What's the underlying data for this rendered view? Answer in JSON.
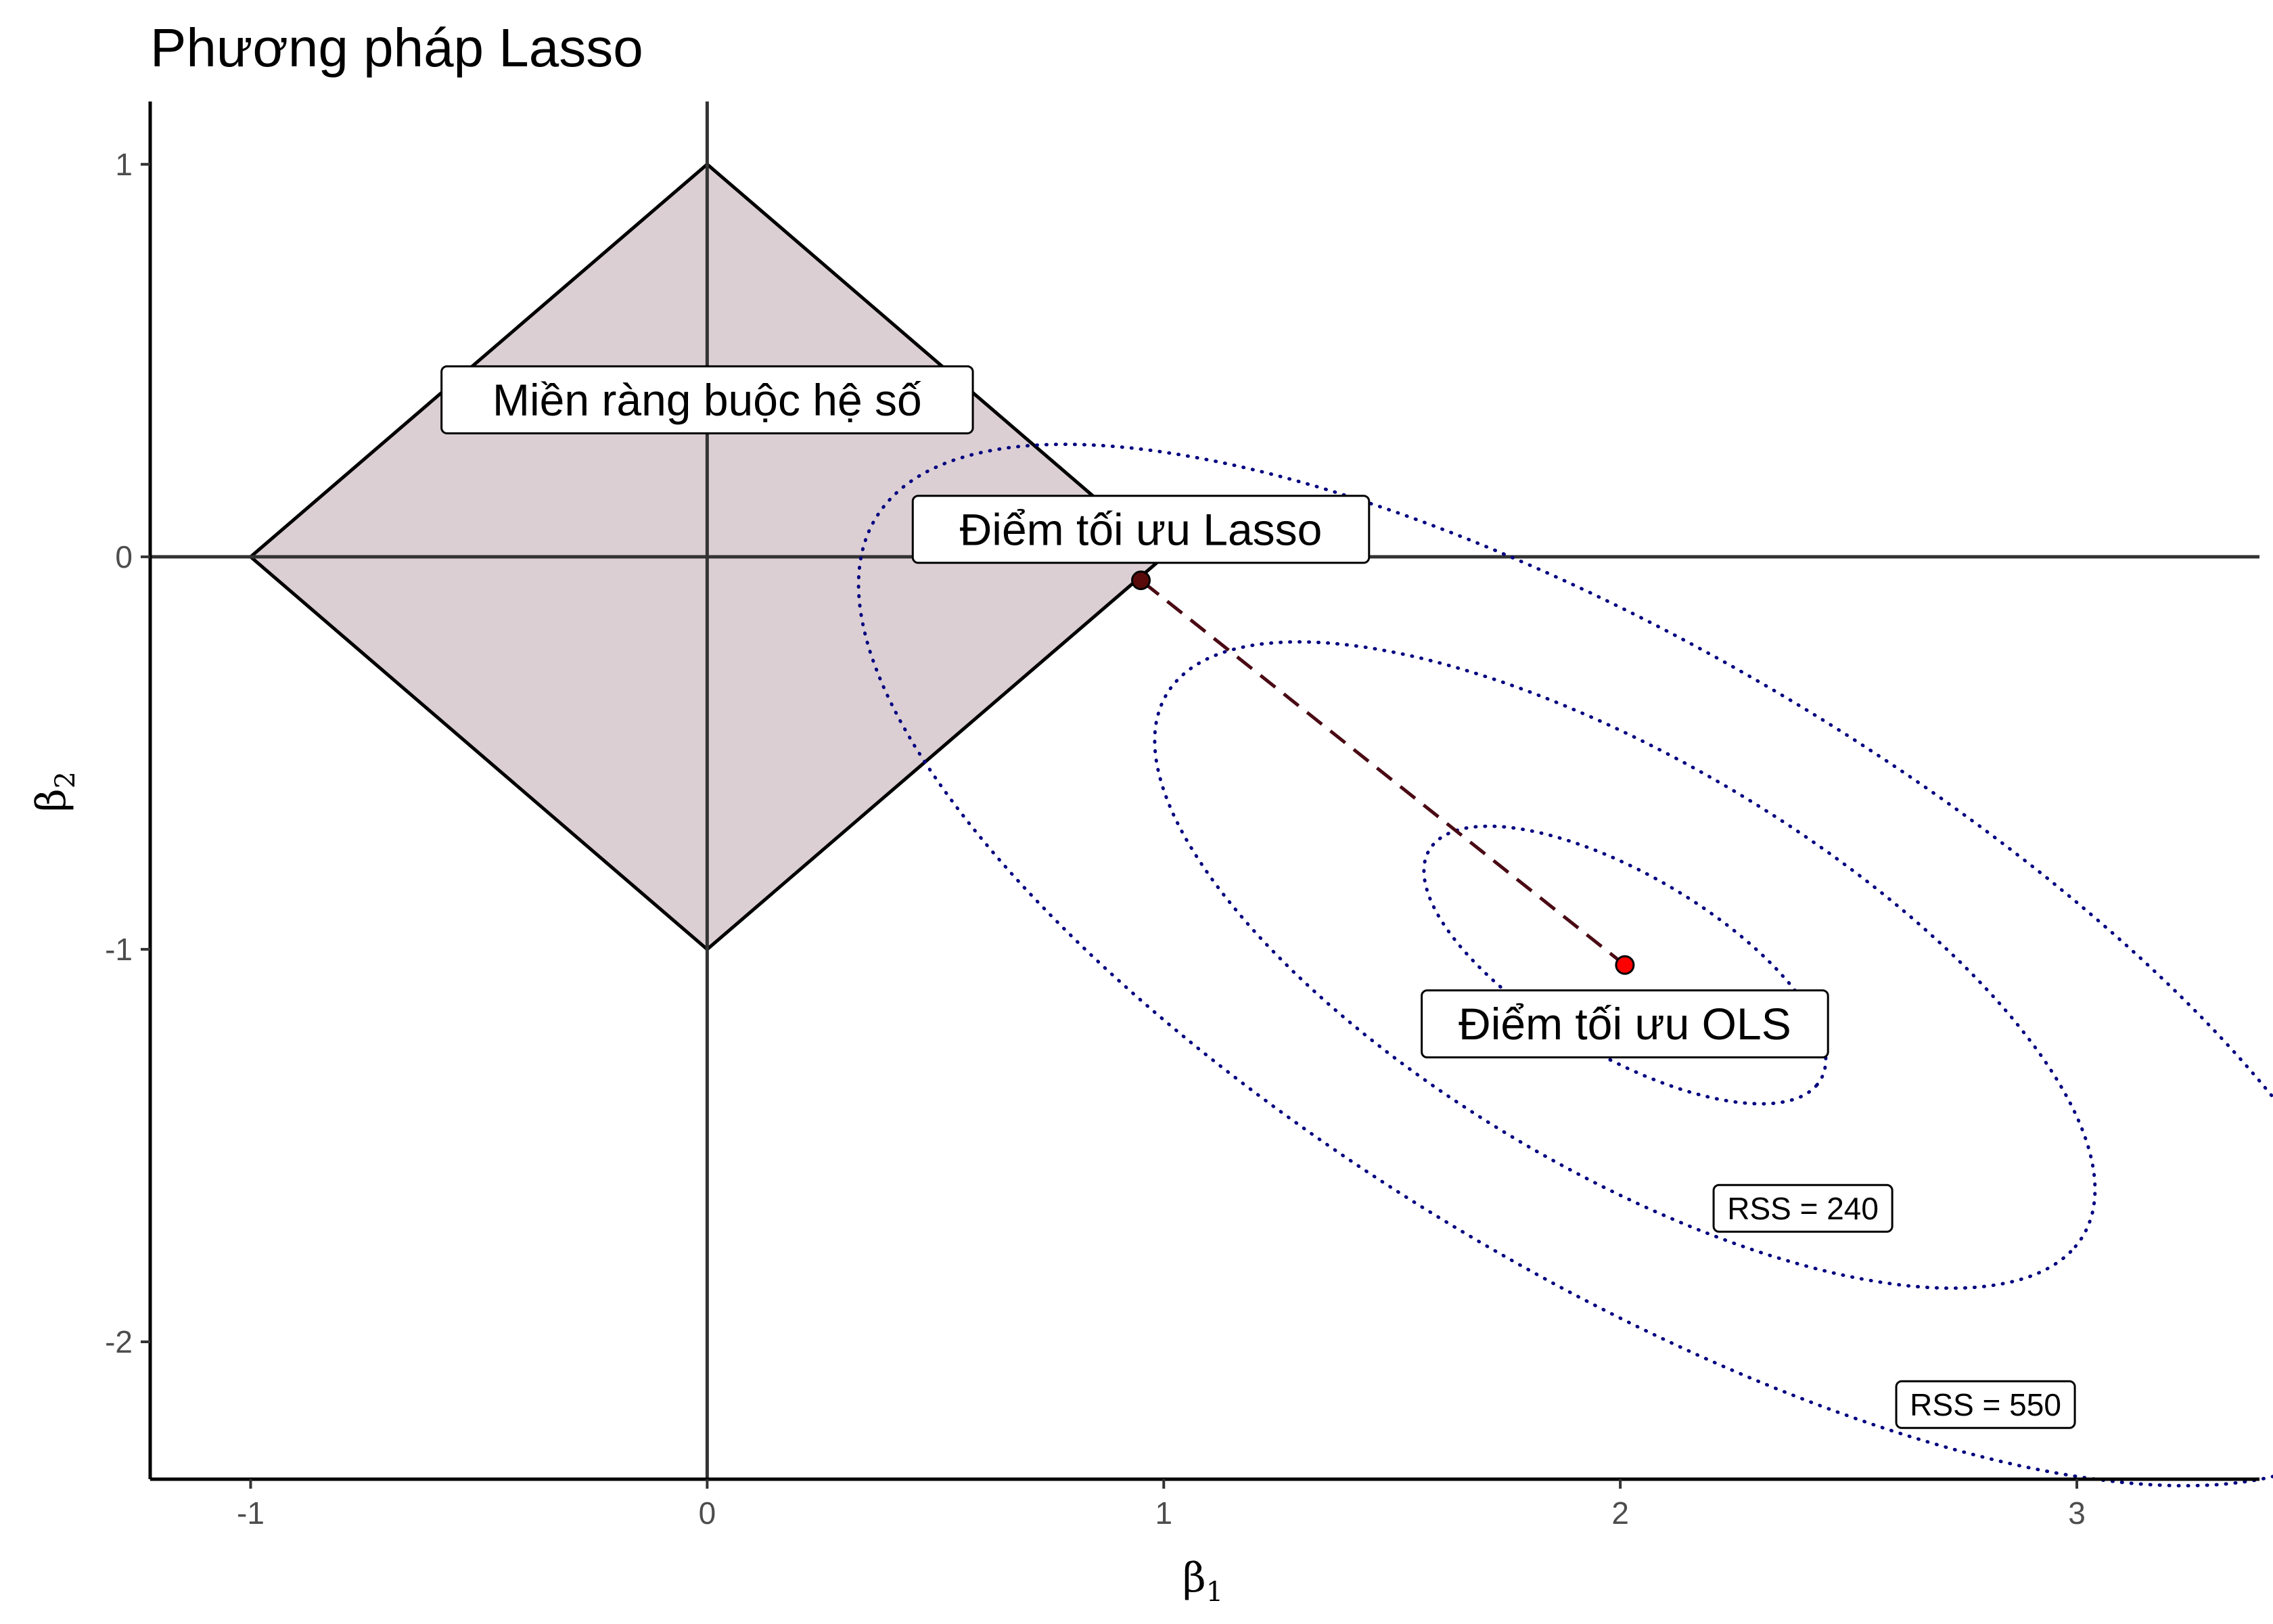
{
  "chart_data": {
    "type": "line",
    "title": "Phương pháp Lasso",
    "xlabel": "β",
    "xlabel_sub": "1",
    "ylabel": "β",
    "ylabel_sub": "2",
    "xlim": [
      -1.22,
      3.4
    ],
    "ylim": [
      -2.35,
      1.16
    ],
    "xticks": [
      -1,
      0,
      1,
      2,
      3
    ],
    "yticks": [
      -2,
      -1,
      0,
      1
    ],
    "grid": false,
    "colors": {
      "constraint_fill": "#dccfd3",
      "constraint_stroke": "#000000",
      "contour": "#000080",
      "path": "#4a0a14",
      "ols_point": "#ff0000",
      "lasso_point": "#5a0a0a",
      "axis_lines": "#333333"
    },
    "constraint_region": {
      "label": "Miền ràng buộc hệ số",
      "vertices": [
        [
          1,
          0
        ],
        [
          0,
          1
        ],
        [
          -1,
          0
        ],
        [
          0,
          -1
        ]
      ]
    },
    "ols_point": {
      "label": "Điểm tối ưu OLS",
      "x": 2.01,
      "y": -1.04
    },
    "lasso_point": {
      "label": "Điểm tối ưu Lasso",
      "x": 0.95,
      "y": -0.06
    },
    "contours": [
      {
        "name": "",
        "center": [
          2.01,
          -1.04
        ],
        "rx": 0.52,
        "ry": 0.22,
        "angle_deg": -36
      },
      {
        "name": "RSS = 240",
        "center": [
          2.01,
          -1.04
        ],
        "rx": 1.22,
        "ry": 0.5,
        "angle_deg": -36
      },
      {
        "name": "RSS = 550",
        "center": [
          2.01,
          -1.04
        ],
        "rx": 2.0,
        "ry": 0.76,
        "angle_deg": -36
      }
    ],
    "contour_labels": [
      {
        "text": "RSS = 240",
        "x": 2.4,
        "y": -1.66
      },
      {
        "text": "RSS = 550",
        "x": 2.8,
        "y": -2.16
      }
    ]
  }
}
